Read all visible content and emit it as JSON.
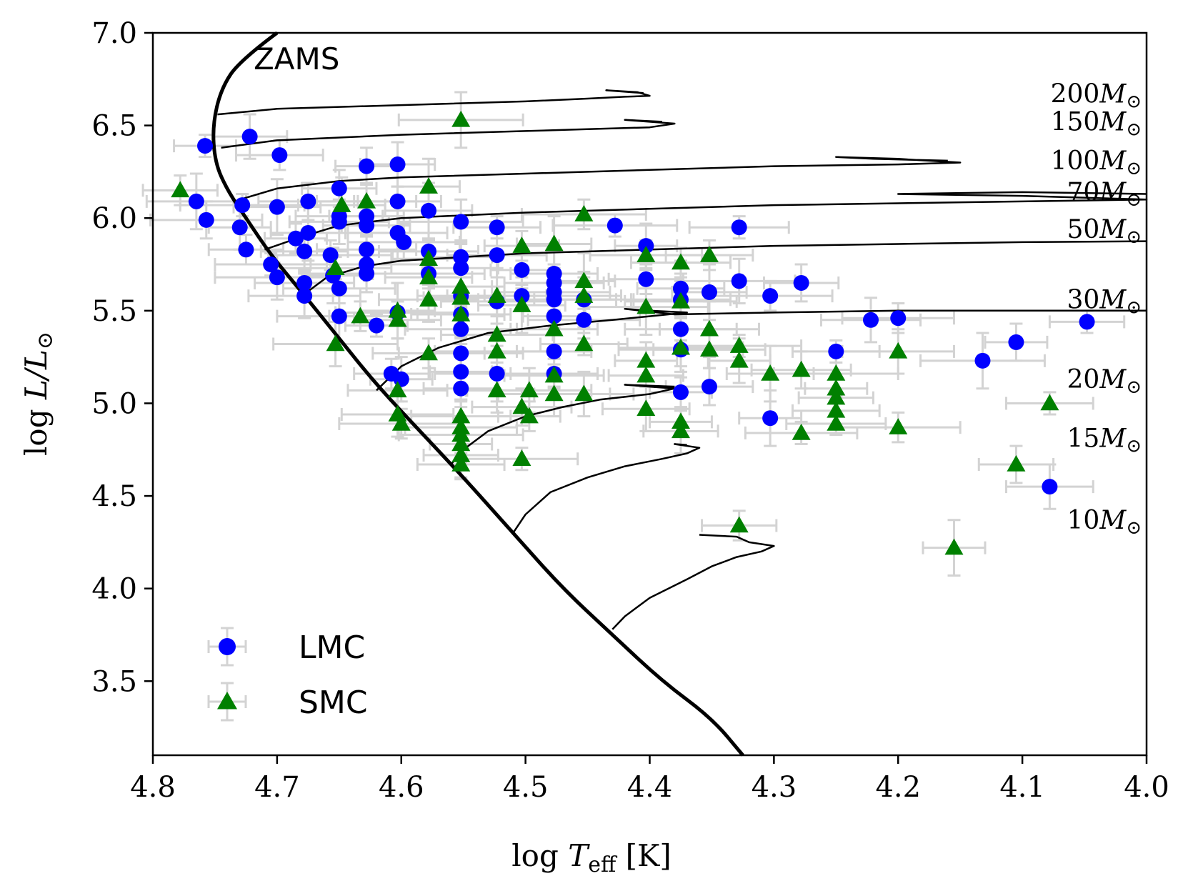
{
  "chart_data": {
    "type": "scatter",
    "title": "",
    "xlabel": "log T_eff [K]",
    "xlabel_parts": {
      "prefix": "log ",
      "symbol": "T",
      "subscript": "eff",
      "unit": " [K]"
    },
    "ylabel": "log L/L⊙",
    "ylabel_parts": {
      "prefix": "log ",
      "symbol": "L/L",
      "sun": "⊙"
    },
    "xlim": [
      4.8,
      4.0
    ],
    "ylim": [
      3.1,
      7.0
    ],
    "x_inverted": true,
    "xticks": [
      4.8,
      4.7,
      4.6,
      4.5,
      4.4,
      4.3,
      4.2,
      4.1,
      4.0
    ],
    "xtick_labels": [
      "4.8",
      "4.7",
      "4.6",
      "4.5",
      "4.4",
      "4.3",
      "4.2",
      "4.1",
      "4.0"
    ],
    "yticks": [
      3.5,
      4.0,
      4.5,
      5.0,
      5.5,
      6.0,
      6.5,
      7.0
    ],
    "ytick_labels": [
      "3.5",
      "4.0",
      "4.5",
      "5.0",
      "5.5",
      "6.0",
      "6.5",
      "7.0"
    ],
    "grid": false,
    "zams_label": "ZAMS",
    "zams": [
      [
        4.7,
        7.0
      ],
      [
        4.73,
        6.85
      ],
      [
        4.745,
        6.7
      ],
      [
        4.752,
        6.5
      ],
      [
        4.75,
        6.3
      ],
      [
        4.74,
        6.15
      ],
      [
        4.725,
        6.0
      ],
      [
        4.705,
        5.8
      ],
      [
        4.68,
        5.6
      ],
      [
        4.65,
        5.35
      ],
      [
        4.62,
        5.1
      ],
      [
        4.585,
        4.85
      ],
      [
        4.55,
        4.6
      ],
      [
        4.51,
        4.3
      ],
      [
        4.47,
        4.0
      ],
      [
        4.43,
        3.75
      ],
      [
        4.39,
        3.5
      ],
      [
        4.35,
        3.3
      ],
      [
        4.325,
        3.1
      ]
    ],
    "tracks": [
      {
        "mass": "200",
        "label_value": 6.67,
        "points": [
          [
            4.748,
            6.56
          ],
          [
            4.7,
            6.59
          ],
          [
            4.6,
            6.61
          ],
          [
            4.5,
            6.63
          ],
          [
            4.45,
            6.645
          ],
          [
            4.42,
            6.655
          ],
          [
            4.4,
            6.66
          ],
          [
            4.41,
            6.68
          ],
          [
            4.435,
            6.69
          ],
          [
            4.405,
            6.675
          ]
        ]
      },
      {
        "mass": "150",
        "label_value": 6.52,
        "points": [
          [
            4.745,
            6.38
          ],
          [
            4.7,
            6.42
          ],
          [
            4.6,
            6.45
          ],
          [
            4.5,
            6.47
          ],
          [
            4.45,
            6.48
          ],
          [
            4.4,
            6.49
          ],
          [
            4.38,
            6.51
          ],
          [
            4.42,
            6.53
          ],
          [
            4.39,
            6.52
          ]
        ]
      },
      {
        "mass": "100",
        "label_value": 6.31,
        "points": [
          [
            4.73,
            6.1
          ],
          [
            4.7,
            6.16
          ],
          [
            4.65,
            6.2
          ],
          [
            4.6,
            6.22
          ],
          [
            4.5,
            6.24
          ],
          [
            4.4,
            6.26
          ],
          [
            4.3,
            6.28
          ],
          [
            4.2,
            6.29
          ],
          [
            4.15,
            6.3
          ],
          [
            4.2,
            6.32
          ],
          [
            4.25,
            6.33
          ],
          [
            4.22,
            6.32
          ],
          [
            4.16,
            6.31
          ]
        ]
      },
      {
        "mass": "70",
        "label_value": 6.14,
        "points": [
          [
            4.71,
            5.83
          ],
          [
            4.68,
            5.9
          ],
          [
            4.65,
            5.96
          ],
          [
            4.6,
            6.0
          ],
          [
            4.5,
            6.03
          ],
          [
            4.4,
            6.05
          ],
          [
            4.3,
            6.07
          ],
          [
            4.2,
            6.08
          ],
          [
            4.1,
            6.09
          ],
          [
            4.0,
            6.1
          ],
          [
            4.1,
            6.12
          ],
          [
            4.2,
            6.13
          ],
          [
            4.1,
            6.14
          ],
          [
            4.0,
            6.13
          ]
        ]
      },
      {
        "mass": "50",
        "label_value": 5.94,
        "points": [
          [
            4.68,
            5.58
          ],
          [
            4.66,
            5.68
          ],
          [
            4.63,
            5.74
          ],
          [
            4.6,
            5.77
          ],
          [
            4.5,
            5.81
          ],
          [
            4.4,
            5.83
          ],
          [
            4.3,
            5.85
          ],
          [
            4.2,
            5.86
          ],
          [
            4.1,
            5.87
          ],
          [
            4.0,
            5.875
          ]
        ]
      },
      {
        "mass": "30",
        "label_value": 5.56,
        "points": [
          [
            4.62,
            5.07
          ],
          [
            4.6,
            5.2
          ],
          [
            4.57,
            5.3
          ],
          [
            4.53,
            5.38
          ],
          [
            4.48,
            5.42
          ],
          [
            4.43,
            5.45
          ],
          [
            4.4,
            5.47
          ],
          [
            4.37,
            5.49
          ],
          [
            4.4,
            5.5
          ],
          [
            4.42,
            5.51
          ],
          [
            4.38,
            5.48
          ],
          [
            4.3,
            5.49
          ],
          [
            4.2,
            5.5
          ],
          [
            4.1,
            5.5
          ],
          [
            4.0,
            5.5
          ]
        ]
      },
      {
        "mass": "20",
        "label_value": 5.13,
        "points": [
          [
            4.56,
            4.67
          ],
          [
            4.55,
            4.75
          ],
          [
            4.53,
            4.85
          ],
          [
            4.5,
            4.93
          ],
          [
            4.47,
            4.98
          ],
          [
            4.44,
            5.02
          ],
          [
            4.4,
            5.05
          ],
          [
            4.38,
            5.08
          ],
          [
            4.42,
            5.1
          ],
          [
            4.38,
            5.09
          ]
        ]
      },
      {
        "mass": "15",
        "label_value": 4.81,
        "points": [
          [
            4.51,
            4.3
          ],
          [
            4.5,
            4.4
          ],
          [
            4.48,
            4.52
          ],
          [
            4.45,
            4.6
          ],
          [
            4.42,
            4.66
          ],
          [
            4.39,
            4.7
          ],
          [
            4.37,
            4.73
          ],
          [
            4.36,
            4.76
          ],
          [
            4.38,
            4.78
          ],
          [
            4.37,
            4.775
          ]
        ]
      },
      {
        "mass": "10",
        "label_value": 4.37,
        "points": [
          [
            4.43,
            3.78
          ],
          [
            4.42,
            3.85
          ],
          [
            4.4,
            3.95
          ],
          [
            4.37,
            4.05
          ],
          [
            4.35,
            4.12
          ],
          [
            4.33,
            4.17
          ],
          [
            4.31,
            4.2
          ],
          [
            4.3,
            4.23
          ],
          [
            4.32,
            4.25
          ],
          [
            4.33,
            4.28
          ],
          [
            4.36,
            4.29
          ]
        ]
      }
    ],
    "track_label_unit": "M⊙",
    "series": [
      {
        "name": "LMC",
        "color": "#0000ff",
        "marker": "circle",
        "points": [
          [
            4.758,
            6.39
          ],
          [
            4.722,
            6.44
          ],
          [
            4.698,
            6.34
          ],
          [
            4.765,
            6.09
          ],
          [
            4.757,
            5.99
          ],
          [
            4.728,
            6.07
          ],
          [
            4.73,
            5.95
          ],
          [
            4.725,
            5.83
          ],
          [
            4.7,
            6.06
          ],
          [
            4.675,
            6.09
          ],
          [
            4.705,
            5.75
          ],
          [
            4.7,
            5.68
          ],
          [
            4.685,
            5.89
          ],
          [
            4.675,
            5.92
          ],
          [
            4.678,
            5.82
          ],
          [
            4.678,
            5.65
          ],
          [
            4.678,
            5.58
          ],
          [
            4.657,
            5.8
          ],
          [
            4.655,
            5.69
          ],
          [
            4.65,
            6.16
          ],
          [
            4.65,
            6.01
          ],
          [
            4.65,
            5.98
          ],
          [
            4.65,
            5.62
          ],
          [
            4.65,
            5.47
          ],
          [
            4.628,
            6.28
          ],
          [
            4.628,
            6.01
          ],
          [
            4.628,
            5.96
          ],
          [
            4.628,
            5.83
          ],
          [
            4.628,
            5.75
          ],
          [
            4.628,
            5.7
          ],
          [
            4.62,
            5.42
          ],
          [
            4.603,
            6.29
          ],
          [
            4.603,
            6.09
          ],
          [
            4.603,
            5.92
          ],
          [
            4.598,
            5.87
          ],
          [
            4.603,
            5.49
          ],
          [
            4.6,
            5.13
          ],
          [
            4.608,
            5.16
          ],
          [
            4.578,
            6.04
          ],
          [
            4.578,
            5.82
          ],
          [
            4.578,
            5.7
          ],
          [
            4.552,
            5.98
          ],
          [
            4.552,
            5.79
          ],
          [
            4.552,
            5.73
          ],
          [
            4.552,
            5.58
          ],
          [
            4.552,
            5.48
          ],
          [
            4.552,
            5.4
          ],
          [
            4.552,
            5.27
          ],
          [
            4.552,
            5.17
          ],
          [
            4.552,
            5.08
          ],
          [
            4.523,
            5.95
          ],
          [
            4.523,
            5.8
          ],
          [
            4.523,
            5.55
          ],
          [
            4.523,
            5.16
          ],
          [
            4.503,
            5.72
          ],
          [
            4.503,
            5.58
          ],
          [
            4.477,
            5.7
          ],
          [
            4.477,
            5.65
          ],
          [
            4.477,
            5.6
          ],
          [
            4.477,
            5.56
          ],
          [
            4.477,
            5.47
          ],
          [
            4.477,
            5.28
          ],
          [
            4.477,
            5.16
          ],
          [
            4.453,
            5.56
          ],
          [
            4.453,
            5.45
          ],
          [
            4.428,
            5.96
          ],
          [
            4.403,
            5.85
          ],
          [
            4.403,
            5.67
          ],
          [
            4.375,
            5.62
          ],
          [
            4.375,
            5.56
          ],
          [
            4.375,
            5.4
          ],
          [
            4.375,
            5.29
          ],
          [
            4.375,
            5.06
          ],
          [
            4.352,
            5.6
          ],
          [
            4.352,
            5.09
          ],
          [
            4.328,
            5.95
          ],
          [
            4.328,
            5.66
          ],
          [
            4.303,
            5.58
          ],
          [
            4.303,
            4.92
          ],
          [
            4.278,
            5.65
          ],
          [
            4.25,
            5.28
          ],
          [
            4.222,
            5.45
          ],
          [
            4.2,
            5.46
          ],
          [
            4.132,
            5.23
          ],
          [
            4.105,
            5.33
          ],
          [
            4.048,
            5.44
          ],
          [
            4.078,
            4.55
          ]
        ]
      },
      {
        "name": "SMC",
        "color": "#008000",
        "marker": "triangle",
        "points": [
          [
            4.778,
            6.15
          ],
          [
            4.648,
            6.07
          ],
          [
            4.628,
            6.09
          ],
          [
            4.653,
            5.73
          ],
          [
            4.653,
            5.32
          ],
          [
            4.633,
            5.47
          ],
          [
            4.603,
            5.5
          ],
          [
            4.603,
            5.45
          ],
          [
            4.603,
            5.07
          ],
          [
            4.603,
            4.94
          ],
          [
            4.6,
            4.89
          ],
          [
            4.578,
            6.17
          ],
          [
            4.578,
            5.78
          ],
          [
            4.578,
            5.68
          ],
          [
            4.578,
            5.56
          ],
          [
            4.578,
            5.27
          ],
          [
            4.552,
            6.53
          ],
          [
            4.552,
            5.63
          ],
          [
            4.552,
            5.57
          ],
          [
            4.552,
            5.48
          ],
          [
            4.552,
            4.93
          ],
          [
            4.552,
            4.87
          ],
          [
            4.552,
            4.83
          ],
          [
            4.552,
            4.78
          ],
          [
            4.552,
            4.72
          ],
          [
            4.552,
            4.67
          ],
          [
            4.523,
            5.58
          ],
          [
            4.523,
            5.37
          ],
          [
            4.523,
            5.28
          ],
          [
            4.523,
            5.07
          ],
          [
            4.503,
            5.85
          ],
          [
            4.503,
            5.53
          ],
          [
            4.503,
            4.98
          ],
          [
            4.503,
            4.7
          ],
          [
            4.497,
            5.07
          ],
          [
            4.497,
            4.93
          ],
          [
            4.477,
            5.86
          ],
          [
            4.477,
            5.4
          ],
          [
            4.477,
            5.15
          ],
          [
            4.477,
            5.05
          ],
          [
            4.453,
            6.02
          ],
          [
            4.453,
            5.66
          ],
          [
            4.453,
            5.58
          ],
          [
            4.453,
            5.32
          ],
          [
            4.453,
            5.05
          ],
          [
            4.403,
            5.8
          ],
          [
            4.403,
            5.52
          ],
          [
            4.403,
            5.23
          ],
          [
            4.403,
            5.15
          ],
          [
            4.403,
            4.97
          ],
          [
            4.375,
            5.76
          ],
          [
            4.375,
            5.55
          ],
          [
            4.375,
            5.3
          ],
          [
            4.375,
            4.9
          ],
          [
            4.375,
            4.85
          ],
          [
            4.352,
            5.8
          ],
          [
            4.352,
            5.4
          ],
          [
            4.352,
            5.29
          ],
          [
            4.328,
            5.31
          ],
          [
            4.328,
            5.23
          ],
          [
            4.328,
            4.34
          ],
          [
            4.303,
            5.16
          ],
          [
            4.278,
            5.18
          ],
          [
            4.278,
            4.84
          ],
          [
            4.25,
            5.16
          ],
          [
            4.25,
            5.08
          ],
          [
            4.25,
            5.03
          ],
          [
            4.25,
            4.96
          ],
          [
            4.25,
            4.89
          ],
          [
            4.2,
            5.28
          ],
          [
            4.2,
            4.87
          ],
          [
            4.155,
            4.22
          ],
          [
            4.105,
            4.67
          ],
          [
            4.078,
            5.0
          ]
        ]
      }
    ],
    "legend": {
      "placement": "lower-left",
      "entries": [
        {
          "label": "LMC",
          "marker": "circle",
          "color": "#0000ff"
        },
        {
          "label": "SMC",
          "marker": "triangle",
          "color": "#008000"
        }
      ]
    },
    "colors": {
      "axis": "#000000",
      "errorbar": "#d3d3d3",
      "track": "#000000"
    }
  }
}
